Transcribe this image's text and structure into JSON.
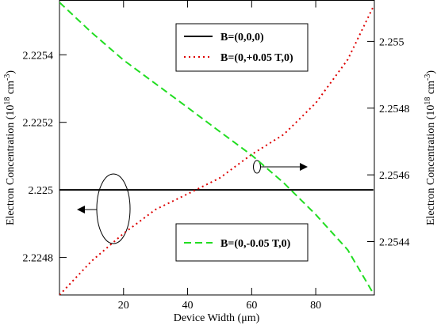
{
  "chart_data": {
    "type": "line",
    "x_label": "Device Width (μm)",
    "y_label_parts": [
      "Electron Concentration (10",
      "18",
      " cm",
      "-3",
      ")"
    ],
    "y2_label_parts": [
      "Electron Concentration (10",
      "18",
      " cm",
      "-3",
      ")"
    ],
    "x": [
      0,
      10,
      20,
      30,
      40,
      50,
      60,
      70,
      80,
      90,
      98
    ],
    "series": [
      {
        "name": "B=(0,0,0)",
        "color": "#000000",
        "dash": "solid",
        "axis": "y",
        "values": [
          2.225,
          2.225,
          2.225,
          2.225,
          2.225,
          2.225,
          2.225,
          2.225,
          2.225,
          2.225,
          2.225
        ]
      },
      {
        "name": "B=(0,+0.05 T,0)",
        "color": "#dd0000",
        "dash": "dotted",
        "axis": "y",
        "values": [
          2.224689,
          2.224789,
          2.224871,
          2.224942,
          2.224988,
          2.225035,
          2.225105,
          2.225164,
          2.225257,
          2.225386,
          2.225543
        ]
      },
      {
        "name": "B=(0,-0.05 T,0)",
        "color": "#22dd22",
        "dash": "dashed",
        "axis": "y2",
        "values": [
          2.255117,
          2.255027,
          2.254944,
          2.254873,
          2.254802,
          2.25473,
          2.254659,
          2.254576,
          2.254481,
          2.254375,
          2.254244
        ]
      }
    ],
    "xlim": [
      0,
      98.3
    ],
    "xticks": [
      20,
      40,
      60,
      80
    ],
    "ylim": [
      2.224689,
      2.225561
    ],
    "yticks": [
      2.2248,
      2.225,
      2.2252,
      2.2254
    ],
    "y2lim": [
      2.25424,
      2.255123
    ],
    "y2ticks": [
      2.2544,
      2.2546,
      2.2548,
      2.255
    ]
  }
}
